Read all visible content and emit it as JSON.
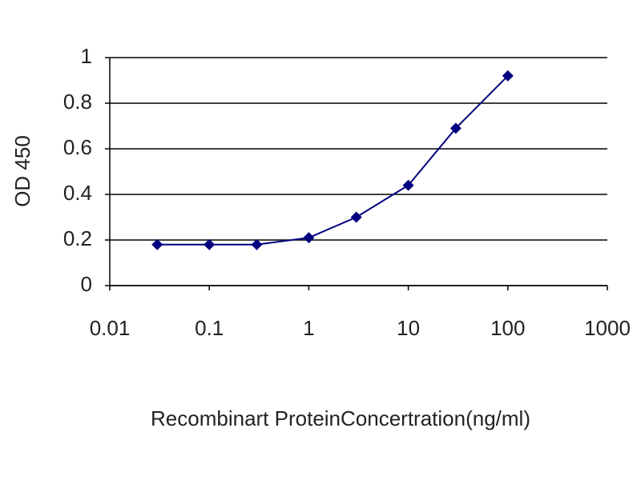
{
  "chart_data": {
    "type": "line",
    "x_label": "Recombinart ProteinConcertration(ng/ml)",
    "y_label": "OD 450",
    "x": [
      0.03,
      0.1,
      0.3,
      1,
      3,
      10,
      30,
      100
    ],
    "series": [
      {
        "name": "OD 450",
        "color": "#000080",
        "values": [
          0.18,
          0.18,
          0.18,
          0.21,
          0.3,
          0.44,
          0.69,
          0.92
        ]
      }
    ],
    "xscale": "log",
    "xlim": [
      0.01,
      1000
    ],
    "xticks": [
      0.01,
      0.1,
      1,
      10,
      100,
      1000
    ],
    "ylim": [
      0,
      1
    ],
    "yticks": [
      0,
      0.2,
      0.4,
      0.6,
      0.8,
      1
    ],
    "grid": true
  }
}
